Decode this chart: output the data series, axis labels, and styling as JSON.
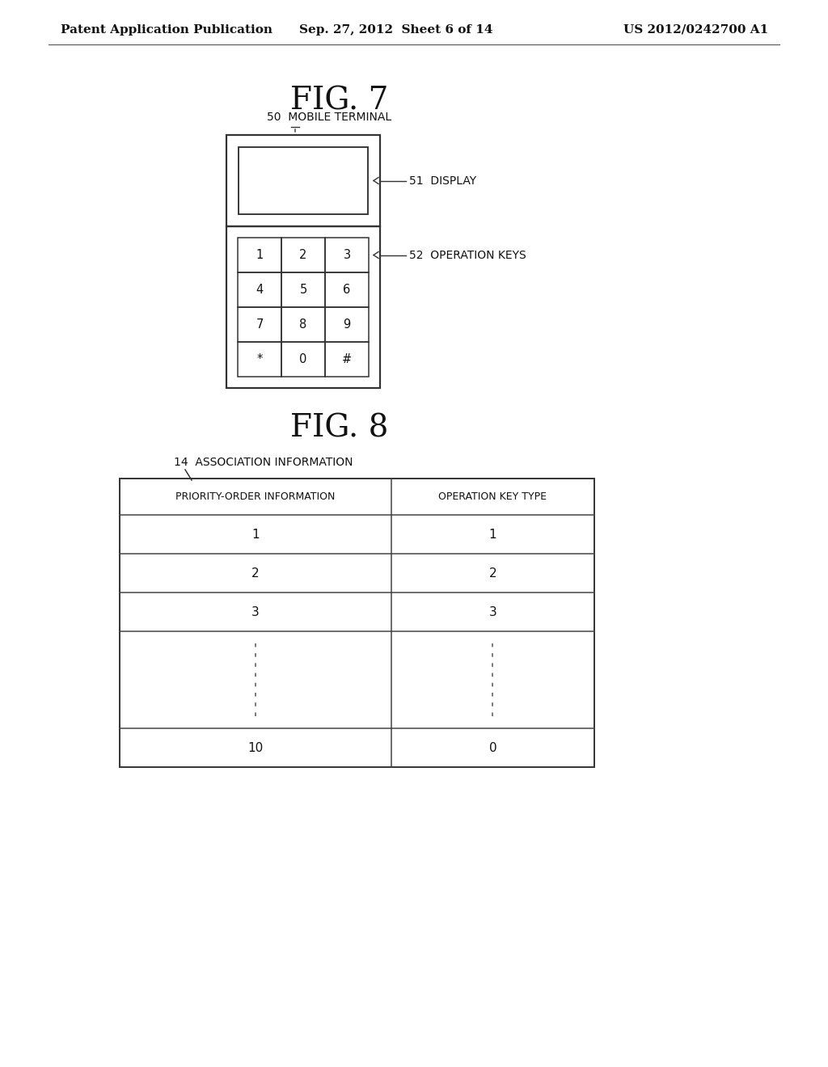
{
  "bg_color": "#ffffff",
  "header_text_left": "Patent Application Publication",
  "header_text_mid": "Sep. 27, 2012  Sheet 6 of 14",
  "header_text_right": "US 2012/0242700 A1",
  "fig7_title": "FIG. 7",
  "fig8_title": "FIG. 8",
  "label_50": "50  MOBILE TERMINAL",
  "label_51": "51  DISPLAY",
  "label_52": "52  OPERATION KEYS",
  "label_14": "14  ASSOCIATION INFORMATION",
  "keys": [
    "1",
    "2",
    "3",
    "4",
    "5",
    "6",
    "7",
    "8",
    "9",
    "*",
    "0",
    "#"
  ],
  "table_headers": [
    "PRIORITY-ORDER INFORMATION",
    "OPERATION KEY TYPE"
  ],
  "table_rows": [
    [
      "1",
      "1"
    ],
    [
      "2",
      "2"
    ],
    [
      "3",
      "3"
    ],
    [
      "10",
      "0"
    ]
  ]
}
